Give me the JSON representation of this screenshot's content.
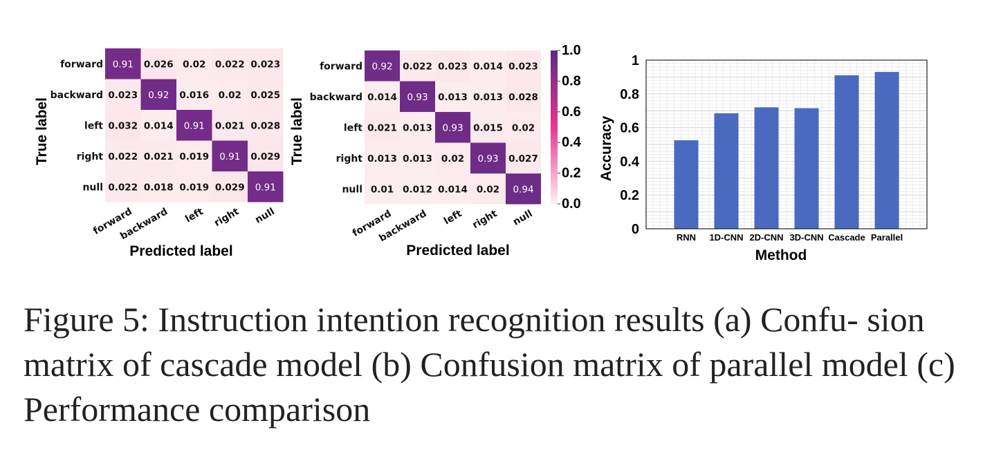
{
  "caption": "Figure 5: Instruction intention recognition results (a) Confu- sion matrix of cascade model (b) Confusion matrix of parallel model (c) Performance comparison",
  "colors": {
    "cmap_low": "#fdf1f1",
    "cmap_mid": "#e7378f",
    "cmap_high": "#5b2a86",
    "bar": "#4a6abf"
  },
  "chart_data": [
    {
      "type": "heatmap",
      "xlabel": "Predicted label",
      "ylabel": "True label",
      "x_categories": [
        "forward",
        "backward",
        "left",
        "right",
        "null"
      ],
      "y_categories": [
        "forward",
        "backward",
        "left",
        "right",
        "null"
      ],
      "matrix": [
        [
          "0.91",
          "0.026",
          "0.02",
          "0.022",
          "0.023"
        ],
        [
          "0.023",
          "0.92",
          "0.016",
          "0.02",
          "0.025"
        ],
        [
          "0.032",
          "0.014",
          "0.91",
          "0.021",
          "0.028"
        ],
        [
          "0.022",
          "0.021",
          "0.019",
          "0.91",
          "0.029"
        ],
        [
          "0.022",
          "0.018",
          "0.019",
          "0.029",
          "0.91"
        ]
      ],
      "colorbar": false
    },
    {
      "type": "heatmap",
      "xlabel": "Predicted label",
      "ylabel": "True label",
      "x_categories": [
        "forward",
        "backward",
        "left",
        "right",
        "null"
      ],
      "y_categories": [
        "forward",
        "backward",
        "left",
        "right",
        "null"
      ],
      "matrix": [
        [
          "0.92",
          "0.022",
          "0.023",
          "0.014",
          "0.023"
        ],
        [
          "0.014",
          "0.93",
          "0.013",
          "0.013",
          "0.028"
        ],
        [
          "0.021",
          "0.013",
          "0.93",
          "0.015",
          "0.02"
        ],
        [
          "0.013",
          "0.013",
          "0.02",
          "0.93",
          "0.027"
        ],
        [
          "0.01",
          "0.012",
          "0.014",
          "0.02",
          "0.94"
        ]
      ],
      "colorbar": true,
      "colorbar_range": [
        0,
        1
      ],
      "colorbar_ticks": [
        "0.0",
        "0.2",
        "0.4",
        "0.6",
        "0.8",
        "1.0"
      ]
    },
    {
      "type": "bar",
      "xlabel": "Method",
      "ylabel": "Accuracy",
      "categories": [
        "RNN",
        "1D-CNN",
        "2D-CNN",
        "3D-CNN",
        "Cascade",
        "Parallel"
      ],
      "values": [
        0.525,
        0.685,
        0.72,
        0.715,
        0.91,
        0.93
      ],
      "ylim": [
        0,
        1
      ],
      "yticks": [
        "0",
        "0.2",
        "0.4",
        "0.6",
        "0.8",
        "1"
      ],
      "grid": true
    }
  ]
}
